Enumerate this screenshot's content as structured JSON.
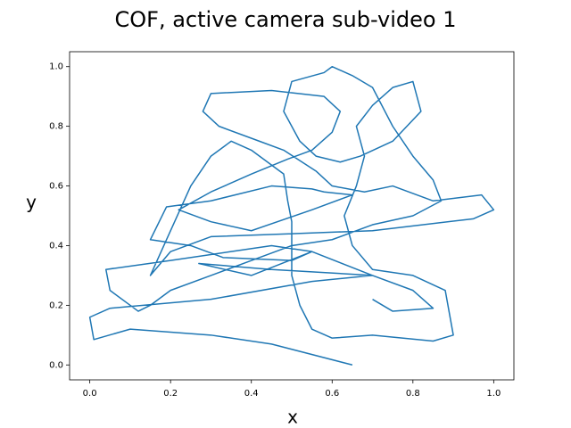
{
  "chart_data": {
    "type": "line",
    "title": "COF, active camera sub-video 1",
    "xlabel": "x",
    "ylabel": "y",
    "x": [
      0.65,
      0.45,
      0.3,
      0.1,
      0.01,
      0.0,
      0.05,
      0.3,
      0.55,
      0.7,
      0.45,
      0.27,
      0.4,
      0.55,
      0.5,
      0.33,
      0.25,
      0.15,
      0.19,
      0.3,
      0.45,
      0.55,
      0.58,
      0.65,
      0.55,
      0.4,
      0.3,
      0.22,
      0.3,
      0.4,
      0.49,
      0.55,
      0.6,
      0.62,
      0.58,
      0.45,
      0.3,
      0.28,
      0.32,
      0.42,
      0.48,
      0.56,
      0.6,
      0.68,
      0.75,
      0.85,
      0.97,
      1.0,
      0.95,
      0.7,
      0.5,
      0.3,
      0.2,
      0.15,
      0.2,
      0.25,
      0.3,
      0.35,
      0.4,
      0.48,
      0.49,
      0.5,
      0.5,
      0.52,
      0.55,
      0.6,
      0.7,
      0.85,
      0.9,
      0.88,
      0.8,
      0.7,
      0.65,
      0.63,
      0.66,
      0.68,
      0.66,
      0.7,
      0.75,
      0.8,
      0.82,
      0.75,
      0.67,
      0.62,
      0.56,
      0.52,
      0.48,
      0.5,
      0.58,
      0.6,
      0.65,
      0.7,
      0.75,
      0.8,
      0.85,
      0.87,
      0.8,
      0.7,
      0.6,
      0.5,
      0.4,
      0.3,
      0.2,
      0.15,
      0.12,
      0.05,
      0.04,
      0.2,
      0.35,
      0.45,
      0.55,
      0.7,
      0.8,
      0.85,
      0.75,
      0.7
    ],
    "series": [
      {
        "color": "#1f77b4",
        "values": [
          0.0,
          0.07,
          0.1,
          0.12,
          0.085,
          0.16,
          0.19,
          0.22,
          0.28,
          0.3,
          0.32,
          0.34,
          0.3,
          0.38,
          0.35,
          0.36,
          0.4,
          0.42,
          0.53,
          0.55,
          0.6,
          0.59,
          0.58,
          0.57,
          0.52,
          0.45,
          0.48,
          0.52,
          0.58,
          0.64,
          0.69,
          0.72,
          0.78,
          0.85,
          0.9,
          0.92,
          0.91,
          0.85,
          0.8,
          0.75,
          0.72,
          0.65,
          0.6,
          0.58,
          0.6,
          0.55,
          0.57,
          0.52,
          0.49,
          0.45,
          0.44,
          0.43,
          0.38,
          0.3,
          0.45,
          0.6,
          0.7,
          0.75,
          0.72,
          0.64,
          0.55,
          0.48,
          0.3,
          0.2,
          0.12,
          0.09,
          0.1,
          0.08,
          0.1,
          0.25,
          0.3,
          0.32,
          0.4,
          0.5,
          0.6,
          0.7,
          0.8,
          0.87,
          0.93,
          0.95,
          0.85,
          0.75,
          0.7,
          0.68,
          0.7,
          0.75,
          0.85,
          0.95,
          0.98,
          1.0,
          0.97,
          0.93,
          0.8,
          0.7,
          0.62,
          0.55,
          0.5,
          0.47,
          0.42,
          0.4,
          0.35,
          0.3,
          0.25,
          0.2,
          0.18,
          0.25,
          0.32,
          0.35,
          0.38,
          0.4,
          0.38,
          0.3,
          0.25,
          0.19,
          0.18,
          0.22
        ]
      }
    ],
    "xlim": [
      -0.05,
      1.05
    ],
    "ylim": [
      -0.05,
      1.05
    ],
    "xticks": [
      {
        "value": 0,
        "label": "0.0"
      },
      0.2,
      0.4,
      0.6,
      0.8,
      {
        "value": 1,
        "label": "1.0"
      }
    ],
    "yticks": [
      {
        "value": 0,
        "label": "0.0"
      },
      0.2,
      0.4,
      0.6,
      0.8,
      {
        "value": 1,
        "label": "1.0"
      }
    ]
  }
}
